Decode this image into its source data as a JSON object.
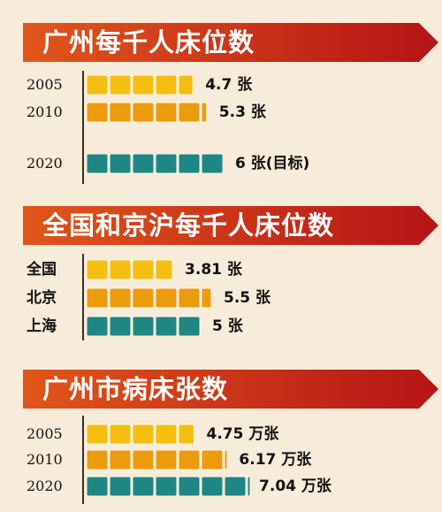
{
  "colors": {
    "background": "#f7ebd9",
    "banner_left": "#e0561a",
    "banner_right": "#b51416",
    "bar_yellow": "#f5be10",
    "bar_orange": "#ec9a0e",
    "bar_teal": "#1e8683",
    "block_border": "#fff7e6"
  },
  "chart_data": [
    {
      "type": "bar",
      "title": "广州每千人床位数",
      "categories": [
        "2005",
        "2010",
        "2020"
      ],
      "values": [
        4.7,
        5.3,
        6
      ],
      "value_labels": [
        "4.7 张",
        "5.3 张",
        "6 张(目标)"
      ],
      "unit_per_block": 1
    },
    {
      "type": "bar",
      "title": "全国和京沪每千人床位数",
      "categories": [
        "全国",
        "北京",
        "上海"
      ],
      "values": [
        3.81,
        5.5,
        5
      ],
      "value_labels": [
        "3.81 张",
        "5.5 张",
        "5 张"
      ],
      "unit_per_block": 1
    },
    {
      "type": "bar",
      "title": "广州市病床张数",
      "categories": [
        "2005",
        "2010",
        "2020"
      ],
      "values": [
        4.75,
        6.17,
        7.04
      ],
      "value_labels": [
        "4.75 万张",
        "6.17 万张",
        "7.04 万张"
      ],
      "unit_per_block": 1
    }
  ]
}
